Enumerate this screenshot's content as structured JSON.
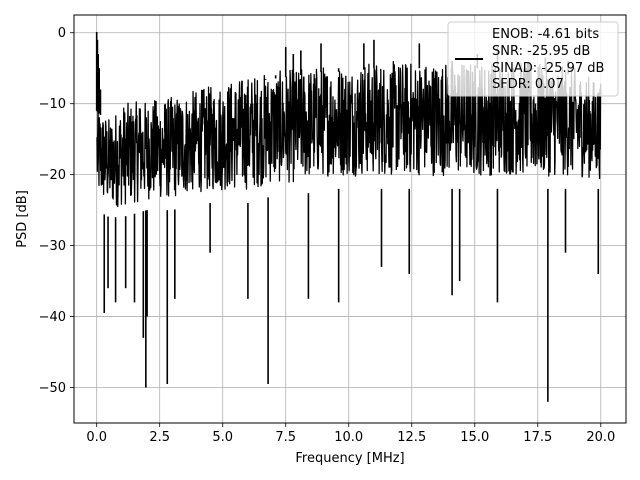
{
  "chart_data": {
    "type": "line",
    "title": "",
    "xlabel": "Frequency [MHz]",
    "ylabel": "PSD [dB]",
    "xlim": [
      -0.9,
      21.0
    ],
    "ylim": [
      -55,
      2.5
    ],
    "xticks": [
      0.0,
      2.5,
      5.0,
      7.5,
      10.0,
      12.5,
      15.0,
      17.5,
      20.0
    ],
    "xtick_labels": [
      "0.0",
      "2.5",
      "5.0",
      "7.5",
      "10.0",
      "12.5",
      "15.0",
      "17.5",
      "20.0"
    ],
    "yticks": [
      0,
      -10,
      -20,
      -30,
      -40,
      -50
    ],
    "ytick_labels": [
      "0",
      "−10",
      "−20",
      "−30",
      "−40",
      "−50"
    ],
    "grid": true,
    "legend_position": "top-right",
    "legend": [
      "ENOB: -4.61 bits",
      "SNR: -25.95 dB",
      "SINAD: -25.97 dB",
      "SFDR: 0.07"
    ],
    "series": [
      {
        "color": "#000000",
        "envelope": {
          "x": [
            0.0,
            0.5,
            1.0,
            2.0,
            3.0,
            4.0,
            5.0,
            6.0,
            7.0,
            8.0,
            9.0,
            10.0,
            11.0,
            12.0,
            13.0,
            14.0,
            15.0,
            16.0,
            17.0,
            18.0,
            19.0,
            20.0
          ],
          "upper": [
            -10,
            -12,
            -10,
            -9.5,
            -9,
            -8,
            -7,
            -6,
            -5.5,
            -5,
            -4.5,
            -4.5,
            -4,
            -4,
            -4,
            -4,
            -4,
            -4,
            -4,
            -4.5,
            -5,
            -7
          ],
          "lower": [
            -26,
            -27,
            -27,
            -26,
            -26,
            -25,
            -25,
            -25,
            -24,
            -24,
            -23,
            -23,
            -23,
            -23,
            -23,
            -23,
            -23,
            -23,
            -23,
            -23,
            -23,
            -23
          ]
        },
        "peaks": [
          [
            0.0,
            0.1
          ],
          [
            0.03,
            -1
          ],
          [
            0.06,
            -3
          ],
          [
            0.1,
            -5
          ],
          [
            0.15,
            -8
          ],
          [
            1.7,
            -14
          ],
          [
            2.7,
            -14
          ],
          [
            4.2,
            -9
          ],
          [
            6.7,
            -6.5
          ],
          [
            7.1,
            -6
          ],
          [
            7.5,
            -2
          ],
          [
            7.8,
            -3
          ],
          [
            8.1,
            -2.5
          ],
          [
            8.9,
            -1.5
          ],
          [
            9.6,
            -5
          ],
          [
            10.6,
            -1.5
          ],
          [
            11.0,
            -1
          ],
          [
            12.8,
            -1.5
          ],
          [
            14.1,
            -4
          ],
          [
            15.1,
            -3
          ],
          [
            15.9,
            -2
          ],
          [
            17.3,
            -5
          ],
          [
            17.8,
            -3.5
          ],
          [
            18.7,
            -4
          ]
        ],
        "dips": [
          [
            0.3,
            -39.5
          ],
          [
            0.45,
            -36
          ],
          [
            0.75,
            -38
          ],
          [
            1.15,
            -36
          ],
          [
            1.5,
            -38
          ],
          [
            1.85,
            -43
          ],
          [
            1.95,
            -50
          ],
          [
            2.0,
            -40
          ],
          [
            2.8,
            -49.5
          ],
          [
            3.1,
            -37.5
          ],
          [
            4.5,
            -31
          ],
          [
            6.0,
            -37.5
          ],
          [
            6.8,
            -49.5
          ],
          [
            8.4,
            -37.5
          ],
          [
            9.6,
            -38
          ],
          [
            11.3,
            -33
          ],
          [
            12.4,
            -34
          ],
          [
            14.1,
            -37
          ],
          [
            14.4,
            -35
          ],
          [
            15.9,
            -38
          ],
          [
            17.9,
            -52
          ],
          [
            18.6,
            -31
          ],
          [
            19.9,
            -34
          ]
        ]
      }
    ]
  }
}
